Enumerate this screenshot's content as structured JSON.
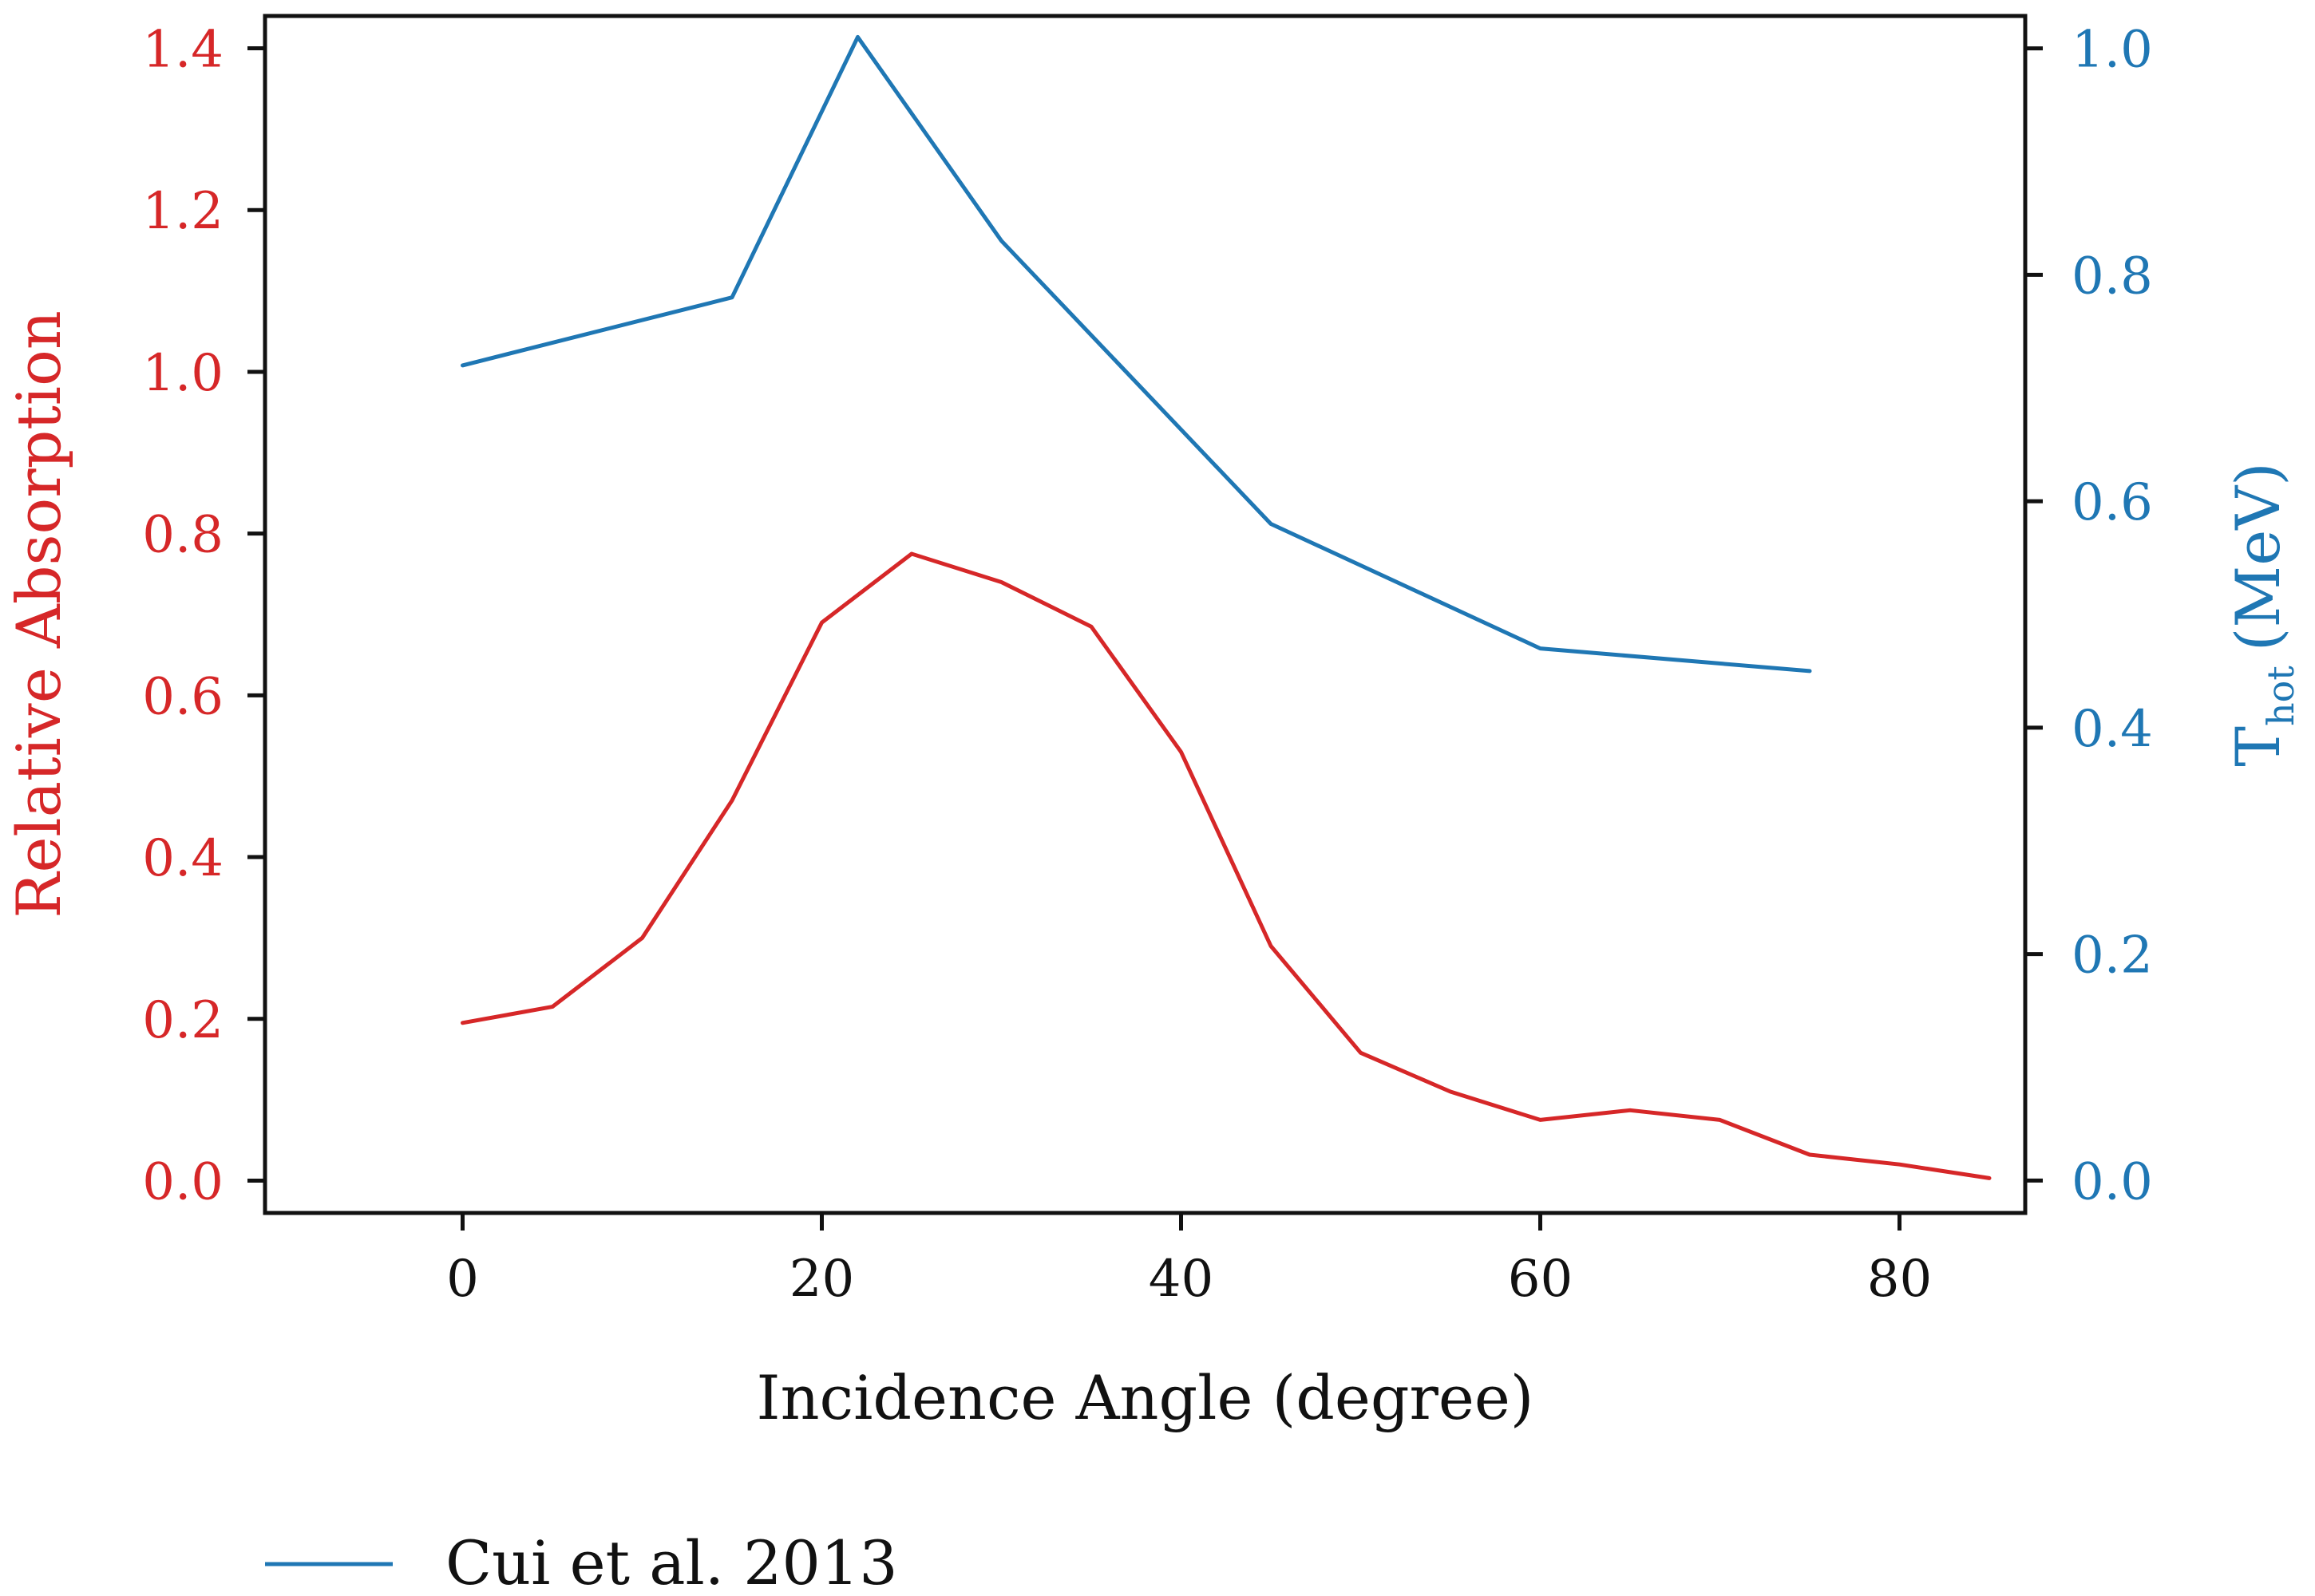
{
  "colors": {
    "left_axis": "#d62728",
    "right_axis": "#1f77b4",
    "frame": "#111111",
    "text": "#111111"
  },
  "chart_data": {
    "type": "line",
    "title": "",
    "xlabel": "Incidence Angle (degree)",
    "ylabel_left": "Relative Absorption",
    "ylabel_right": {
      "main": "T",
      "sub": "hot",
      "unit": "(MeV)"
    },
    "xlim": [
      -11,
      87
    ],
    "ylim_left": [
      -0.04,
      1.44
    ],
    "ylim_right": [
      -0.0286,
      1.0286
    ],
    "x_ticks": [
      "0",
      "20",
      "40",
      "60",
      "80"
    ],
    "y_left_ticks": [
      "0.0",
      "0.2",
      "0.4",
      "0.6",
      "0.8",
      "1.0",
      "1.2",
      "1.4"
    ],
    "y_right_ticks": [
      "0.0",
      "0.2",
      "0.4",
      "0.6",
      "0.8",
      "1.0"
    ],
    "series": [
      {
        "name": "Relative Absorption",
        "axis": "left",
        "color": "#d62728",
        "x": [
          0,
          5,
          10,
          15,
          20,
          25,
          30,
          35,
          40,
          45,
          50,
          55,
          60,
          65,
          70,
          75,
          80,
          85
        ],
        "values": [
          0.195,
          0.215,
          0.3,
          0.47,
          0.69,
          0.775,
          0.74,
          0.685,
          0.53,
          0.29,
          0.158,
          0.11,
          0.075,
          0.087,
          0.075,
          0.032,
          0.02,
          0.003
        ]
      },
      {
        "name": "Cui et al. 2013",
        "axis": "right",
        "color": "#1f77b4",
        "x": [
          0,
          15,
          22,
          30,
          45,
          60,
          75
        ],
        "values": [
          0.72,
          0.78,
          1.01,
          0.83,
          0.58,
          0.47,
          0.45
        ]
      }
    ],
    "legend": {
      "position": "bottom-left",
      "entries": [
        "Cui et al. 2013"
      ]
    }
  }
}
